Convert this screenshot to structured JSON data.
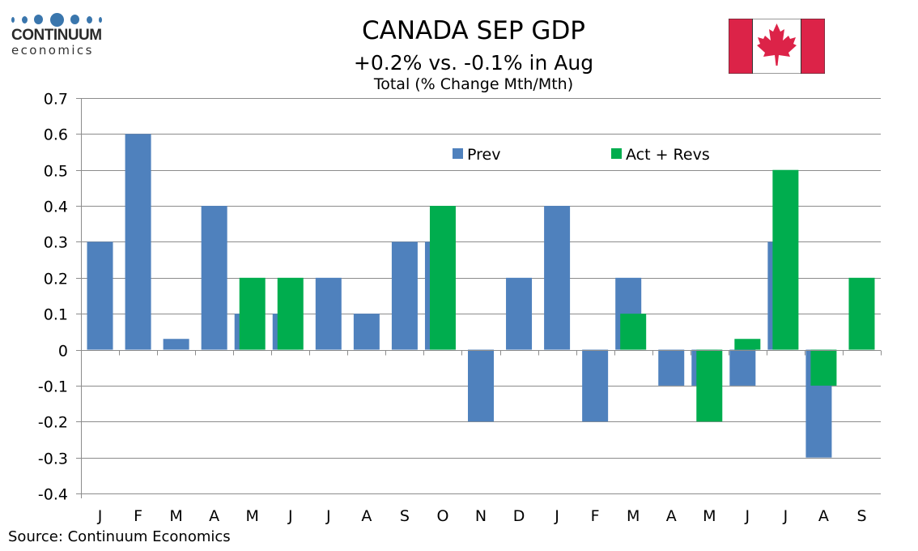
{
  "logo": {
    "word": "CONTINUUM",
    "sub": "economics"
  },
  "header": {
    "title": "CANADA SEP GDP",
    "subtitle": "+0.2% vs. -0.1% in Aug"
  },
  "flag": {
    "name": "Canada",
    "red": "#dc2348",
    "white": "#ffffff"
  },
  "source": "Source: Continuum Economics",
  "chart_data": {
    "type": "bar",
    "title": "CANADA SEP GDP",
    "subtitle": "+0.2% vs. -0.1% in Aug",
    "ylabel": "Total (% Change Mth/Mth)",
    "xlabel": "",
    "categories": [
      "J",
      "F",
      "M",
      "A",
      "M",
      "J",
      "J",
      "A",
      "S",
      "O",
      "N",
      "D",
      "J",
      "F",
      "M",
      "A",
      "M",
      "J",
      "J",
      "A",
      "S"
    ],
    "ylim": [
      -0.4,
      0.7
    ],
    "yticks": [
      0.7,
      0.6,
      0.5,
      0.4,
      0.3,
      0.2,
      0.1,
      0,
      -0.1,
      -0.2,
      -0.3,
      -0.4
    ],
    "ytick_labels": [
      "0.7",
      "0.6",
      "0.5",
      "0.4",
      "0.3",
      "0.2",
      "0.1",
      "0",
      "-0.1",
      "-0.2",
      "-0.3",
      "-0.4"
    ],
    "grid": true,
    "legend_position": "top-center",
    "series": [
      {
        "name": "Prev",
        "color": "#4f81bd",
        "values": [
          0.3,
          0.6,
          0.03,
          0.4,
          0.1,
          0.1,
          0.2,
          0.1,
          0.3,
          0.3,
          -0.2,
          0.2,
          0.4,
          -0.2,
          0.2,
          -0.1,
          -0.1,
          -0.1,
          0.3,
          -0.3,
          null
        ]
      },
      {
        "name": "Act + Revs",
        "color": "#00ad4e",
        "values": [
          null,
          null,
          null,
          null,
          0.2,
          0.2,
          null,
          null,
          null,
          0.4,
          null,
          null,
          null,
          null,
          0.1,
          null,
          -0.2,
          0.03,
          0.5,
          -0.1,
          0.2
        ]
      }
    ]
  }
}
